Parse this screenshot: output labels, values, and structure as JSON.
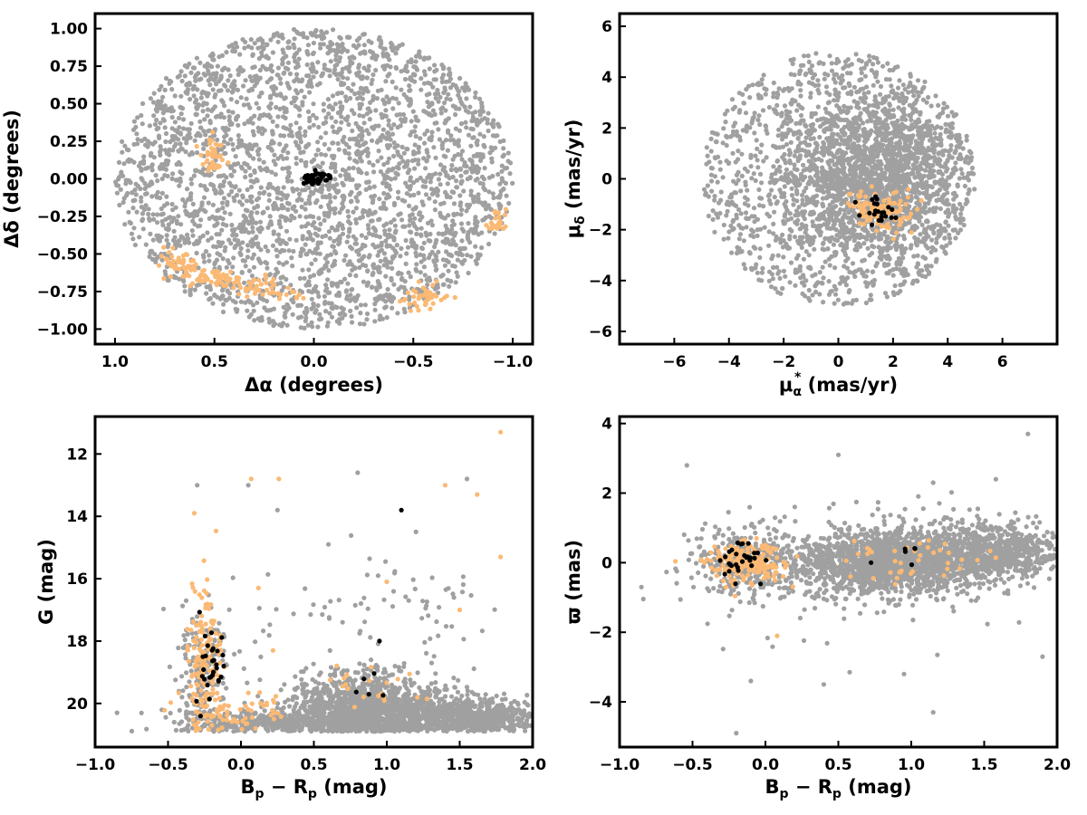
{
  "colors": {
    "field": "#a0a0a0",
    "members": "#fbb974",
    "core": "#000000"
  },
  "chart_data": [
    {
      "type": "scatter",
      "panel": "sky-position",
      "xlabel_main": "Δα",
      "xlabel_rest": " (degrees)",
      "ylabel_main": "Δδ",
      "ylabel_rest": " (degrees)",
      "xlim": [
        1.1,
        -1.1
      ],
      "ylim": [
        -1.1,
        1.1
      ],
      "x_reversed": true,
      "xticks": [
        1.0,
        0.5,
        0.0,
        -0.5,
        -1.0
      ],
      "xtick_labels": [
        "1.0",
        "0.5",
        "0.0",
        "−0.5",
        "−1.0"
      ],
      "yticks": [
        -1.0,
        -0.75,
        -0.5,
        -0.25,
        0.0,
        0.25,
        0.5,
        0.75,
        1.0
      ],
      "ytick_labels": [
        "−1.00",
        "−0.75",
        "−0.50",
        "−0.25",
        "0.00",
        "0.25",
        "0.50",
        "0.75",
        "1.00"
      ],
      "series": [
        {
          "role": "field",
          "color_key": "field",
          "distribution": "uniform disk",
          "center": [
            0,
            0
          ],
          "radius": 1.0,
          "n": 3000
        },
        {
          "role": "members",
          "color_key": "members",
          "clumps": [
            {
              "x": 0.52,
              "y": 0.2,
              "sx": 0.03,
              "sy": 0.05,
              "n": 25
            },
            {
              "x": 0.5,
              "y": 0.1,
              "sx": 0.02,
              "sy": 0.04,
              "n": 12
            },
            {
              "x": 0.68,
              "y": -0.58,
              "sx": 0.05,
              "sy": 0.05,
              "n": 55
            },
            {
              "x": 0.5,
              "y": -0.66,
              "sx": 0.06,
              "sy": 0.03,
              "n": 45
            },
            {
              "x": 0.3,
              "y": -0.71,
              "sx": 0.06,
              "sy": 0.03,
              "n": 35
            },
            {
              "x": 0.14,
              "y": -0.76,
              "sx": 0.05,
              "sy": 0.02,
              "n": 15
            },
            {
              "x": -0.56,
              "y": -0.78,
              "sx": 0.05,
              "sy": 0.04,
              "n": 45
            },
            {
              "x": -0.92,
              "y": -0.28,
              "sx": 0.03,
              "sy": 0.05,
              "n": 25
            }
          ]
        },
        {
          "role": "core",
          "color_key": "core",
          "clumps": [
            {
              "x": -0.01,
              "y": 0.0,
              "sx": 0.035,
              "sy": 0.02,
              "n": 40
            }
          ]
        }
      ]
    },
    {
      "type": "scatter",
      "panel": "proper-motion",
      "xlabel_main": "μ",
      "xlabel_sub": "α",
      "xlabel_sup": "*",
      "xlabel_rest": "  (mas/yr)",
      "ylabel_main": "μ",
      "ylabel_sub": "δ",
      "ylabel_rest": " (mas/yr)",
      "xlim": [
        -8,
        8
      ],
      "ylim": [
        -6.5,
        6.5
      ],
      "xticks": [
        -6,
        -4,
        -2,
        0,
        2,
        4,
        6
      ],
      "xtick_labels": [
        "−6",
        "−4",
        "−2",
        "0",
        "2",
        "4",
        "6"
      ],
      "yticks": [
        -6,
        -4,
        -2,
        0,
        2,
        4,
        6
      ],
      "ytick_labels": [
        "−6",
        "−4",
        "−2",
        "0",
        "2",
        "4",
        "6"
      ],
      "series": [
        {
          "role": "field",
          "color_key": "field",
          "distribution": "disk",
          "center": [
            0,
            0
          ],
          "radius": 5.0,
          "n": 3000
        },
        {
          "role": "members",
          "color_key": "members",
          "clumps": [
            {
              "x": 1.5,
              "y": -1.2,
              "sx": 0.55,
              "sy": 0.4,
              "n": 110
            }
          ]
        },
        {
          "role": "core",
          "color_key": "core",
          "clumps": [
            {
              "x": 1.5,
              "y": -1.2,
              "sx": 0.35,
              "sy": 0.3,
              "n": 22
            }
          ]
        }
      ]
    },
    {
      "type": "scatter",
      "panel": "color-magnitude",
      "xlabel_main": "B",
      "xlabel_sub": "p",
      "xlabel_mid": " − R",
      "xlabel_sub2": "p",
      "xlabel_rest": " (mag)",
      "ylabel_main": "G (mag)",
      "xlim": [
        -1.0,
        2.0
      ],
      "ylim": [
        21.4,
        10.8
      ],
      "y_reversed": true,
      "xticks": [
        -1.0,
        -0.5,
        0.0,
        0.5,
        1.0,
        1.5,
        2.0
      ],
      "xtick_labels": [
        "−1.0",
        "−0.5",
        "0.0",
        "0.5",
        "1.0",
        "1.5",
        "2.0"
      ],
      "yticks": [
        12,
        14,
        16,
        18,
        20
      ],
      "ytick_labels": [
        "12",
        "14",
        "16",
        "18",
        "20"
      ],
      "series": [
        {
          "role": "field",
          "color_key": "field",
          "clumps": [
            {
              "x": 0.85,
              "y": 20.2,
              "sx": 0.25,
              "sy": 0.55,
              "n": 1400
            },
            {
              "x": 1.55,
              "y": 20.4,
              "sx": 0.25,
              "sy": 0.3,
              "n": 700
            },
            {
              "x": 0.15,
              "y": 20.6,
              "sx": 0.3,
              "sy": 0.2,
              "n": 350
            },
            {
              "x": -0.25,
              "y": 19.0,
              "sx": 0.08,
              "sy": 1.0,
              "n": 180
            },
            {
              "x": 0.9,
              "y": 17.0,
              "sx": 0.5,
              "sy": 0.9,
              "n": 80
            }
          ],
          "y_max": 20.9
        },
        {
          "role": "members",
          "color_key": "members",
          "clumps": [
            {
              "x": -0.25,
              "y": 18.5,
              "sx": 0.06,
              "sy": 1.1,
              "n": 150
            },
            {
              "x": -0.05,
              "y": 20.3,
              "sx": 0.2,
              "sy": 0.3,
              "n": 60
            },
            {
              "x": 0.85,
              "y": 19.5,
              "sx": 0.15,
              "sy": 0.4,
              "n": 20
            }
          ],
          "y_max": 20.9
        },
        {
          "role": "core",
          "color_key": "core",
          "clumps": [
            {
              "x": -0.2,
              "y": 18.7,
              "sx": 0.05,
              "sy": 0.8,
              "n": 30
            },
            {
              "x": 0.9,
              "y": 19.3,
              "sx": 0.05,
              "sy": 0.3,
              "n": 5
            }
          ],
          "y_max": 20.9
        }
      ],
      "extra_points": {
        "field": [
          [
            -0.85,
            20.3
          ],
          [
            0.6,
            14.9
          ],
          [
            0.05,
            13.0
          ],
          [
            0.25,
            13.8
          ],
          [
            0.8,
            12.6
          ],
          [
            -0.3,
            13.0
          ],
          [
            1.2,
            14.5
          ],
          [
            1.55,
            12.8
          ]
        ],
        "members": [
          [
            -0.32,
            13.9
          ],
          [
            0.07,
            12.8
          ],
          [
            0.26,
            12.8
          ],
          [
            1.4,
            13.0
          ],
          [
            1.62,
            13.3
          ],
          [
            1.78,
            11.3
          ],
          [
            1.78,
            15.3
          ],
          [
            1.5,
            17.0
          ],
          [
            1.0,
            16.1
          ],
          [
            0.12,
            16.3
          ],
          [
            0.22,
            18.3
          ]
        ],
        "core": [
          [
            1.1,
            13.8
          ],
          [
            0.95,
            18.0
          ]
        ]
      }
    },
    {
      "type": "scatter",
      "panel": "parallax",
      "xlabel_main": "B",
      "xlabel_sub": "p",
      "xlabel_mid": " − R",
      "xlabel_sub2": "p",
      "xlabel_rest": " (mag)",
      "ylabel_main": "ϖ (mas)",
      "xlim": [
        -1.0,
        2.0
      ],
      "ylim": [
        -5.3,
        4.2
      ],
      "xticks": [
        -1.0,
        -0.5,
        0.0,
        0.5,
        1.0,
        1.5,
        2.0
      ],
      "xtick_labels": [
        "−1.0",
        "−0.5",
        "0.0",
        "0.5",
        "1.0",
        "1.5",
        "2.0"
      ],
      "yticks": [
        -4,
        -2,
        0,
        2,
        4
      ],
      "ytick_labels": [
        "−4",
        "−2",
        "0",
        "2",
        "4"
      ],
      "series": [
        {
          "role": "field",
          "color_key": "field",
          "clumps": [
            {
              "x": 0.85,
              "y": 0.0,
              "sx": 0.32,
              "sy": 0.45,
              "n": 1700
            },
            {
              "x": 1.6,
              "y": 0.35,
              "sx": 0.25,
              "sy": 0.4,
              "n": 700
            },
            {
              "x": -0.1,
              "y": 0.0,
              "sx": 0.2,
              "sy": 0.5,
              "n": 350
            },
            {
              "x": 0.8,
              "y": 0.0,
              "sx": 0.6,
              "sy": 1.1,
              "n": 160
            }
          ]
        },
        {
          "role": "members",
          "color_key": "members",
          "clumps": [
            {
              "x": -0.12,
              "y": 0.0,
              "sx": 0.13,
              "sy": 0.3,
              "n": 200
            },
            {
              "x": 0.95,
              "y": 0.05,
              "sx": 0.3,
              "sy": 0.3,
              "n": 40
            }
          ]
        },
        {
          "role": "core",
          "color_key": "core",
          "clumps": [
            {
              "x": -0.15,
              "y": 0.1,
              "sx": 0.07,
              "sy": 0.25,
              "n": 30
            },
            {
              "x": 0.95,
              "y": -0.05,
              "sx": 0.1,
              "sy": 0.25,
              "n": 6
            }
          ]
        }
      ],
      "extra_points": {
        "field": [
          [
            -0.85,
            -0.7
          ],
          [
            -0.2,
            -4.9
          ],
          [
            -0.1,
            -3.4
          ],
          [
            0.4,
            -3.5
          ],
          [
            1.15,
            -4.3
          ],
          [
            1.9,
            -2.7
          ],
          [
            1.8,
            3.7
          ],
          [
            1.15,
            2.3
          ],
          [
            1.58,
            2.4
          ],
          [
            0.95,
            -3.2
          ],
          [
            0.5,
            3.1
          ]
        ],
        "members": [
          [
            0.08,
            -2.1
          ]
        ],
        "core": []
      }
    }
  ]
}
